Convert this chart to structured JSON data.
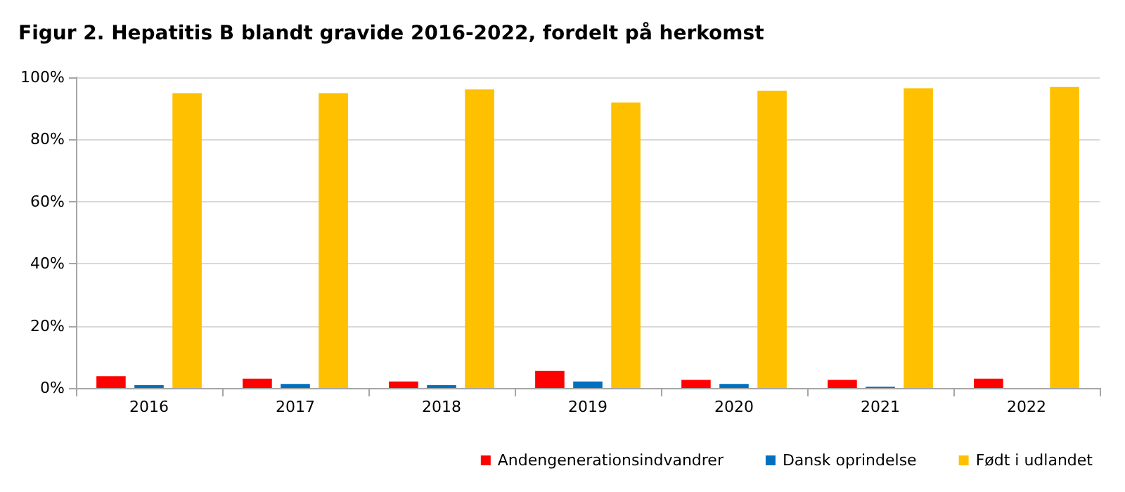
{
  "chart_data": {
    "type": "bar",
    "title": "Figur 2. Hepatitis B blandt gravide 2016-2022, fordelt på herkomst",
    "categories": [
      "2016",
      "2017",
      "2018",
      "2019",
      "2020",
      "2021",
      "2022"
    ],
    "series": [
      {
        "name": "Andengenerationsindvandrer",
        "color": "#ff0000",
        "values": [
          3.8,
          3.0,
          2.1,
          5.5,
          2.6,
          2.6,
          3.0
        ]
      },
      {
        "name": "Dansk oprindelse",
        "color": "#0070c0",
        "values": [
          0.9,
          1.3,
          0.9,
          2.1,
          1.3,
          0.4,
          0
        ]
      },
      {
        "name": "Født i udlandet",
        "color": "#ffc000",
        "values": [
          94.9,
          94.9,
          96.1,
          91.9,
          95.7,
          96.5,
          96.9
        ]
      }
    ],
    "ylim": [
      0,
      100
    ],
    "yticks": [
      {
        "value": 0,
        "label": "0%"
      },
      {
        "value": 20,
        "label": "20%"
      },
      {
        "value": 40,
        "label": "40%"
      },
      {
        "value": 60,
        "label": "60%"
      },
      {
        "value": 80,
        "label": "80%"
      },
      {
        "value": 100,
        "label": "100%"
      }
    ],
    "grid": "y",
    "legend": "bottom right"
  }
}
